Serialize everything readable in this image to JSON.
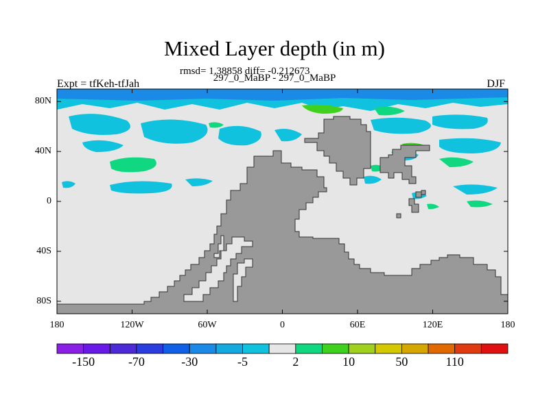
{
  "title": "Mixed Layer depth (in m)",
  "stats_line": "rmsd= 1.38858 diff= -0.212673",
  "subtitle": "297_0_MaBP - 297_0_MaBP",
  "left_label": "Expt = tfKeh-tfJah",
  "right_label": "DJF",
  "map": {
    "projection": "cylindrical-equidistant",
    "lon_range": [
      -180,
      180
    ],
    "lat_range": [
      -90,
      90
    ],
    "lat_ticks": [
      {
        "value": 80,
        "label": "80N"
      },
      {
        "value": 40,
        "label": "40N"
      },
      {
        "value": 0,
        "label": "0"
      },
      {
        "value": -40,
        "label": "40S"
      },
      {
        "value": -80,
        "label": "80S"
      }
    ],
    "lon_ticks": [
      {
        "value": -180,
        "label": "180"
      },
      {
        "value": -120,
        "label": "120W"
      },
      {
        "value": -60,
        "label": "60W"
      },
      {
        "value": 0,
        "label": "0"
      },
      {
        "value": 60,
        "label": "60E"
      },
      {
        "value": 120,
        "label": "120E"
      },
      {
        "value": 180,
        "label": "180"
      }
    ],
    "colors": {
      "ocean_background": "#e6e6e6",
      "land": "#999999",
      "coastline": "#333333"
    }
  },
  "colorbar": {
    "colors": [
      "#8a1fe6",
      "#6a1ae6",
      "#4c2ad6",
      "#2a3ee0",
      "#1060e6",
      "#1a8ae6",
      "#14aadf",
      "#10c2dd",
      "#e6e6e6",
      "#10d880",
      "#40d020",
      "#a0d020",
      "#d4c800",
      "#d4a800",
      "#e06a00",
      "#e03a10",
      "#e01010"
    ],
    "labels": [
      {
        "value": "-150",
        "after_box": 1
      },
      {
        "value": "-70",
        "after_box": 3
      },
      {
        "value": "-30",
        "after_box": 5
      },
      {
        "value": "-5",
        "after_box": 7
      },
      {
        "value": "2",
        "after_box": 9
      },
      {
        "value": "10",
        "after_box": 11
      },
      {
        "value": "50",
        "after_box": 13
      },
      {
        "value": "110",
        "after_box": 15
      }
    ]
  }
}
